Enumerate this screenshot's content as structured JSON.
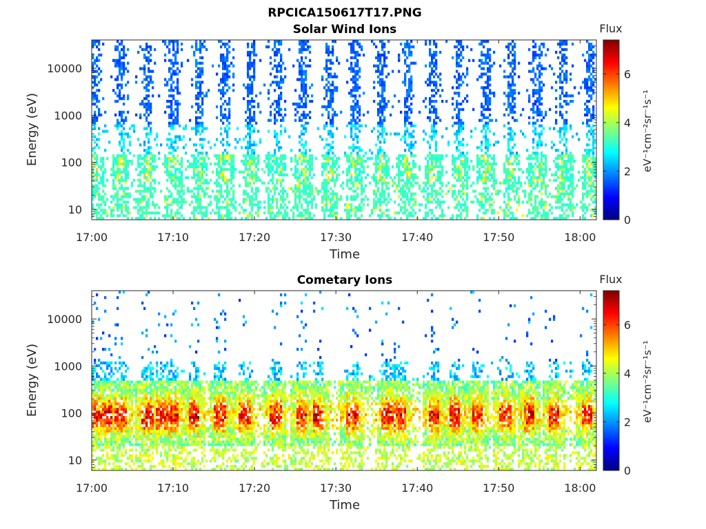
{
  "figure": {
    "title": "RPCICA150617T17.PNG"
  },
  "colormap": {
    "name": "jet",
    "stops": [
      "#00008f",
      "#0000ff",
      "#00ffff",
      "#ffff00",
      "#ff0000",
      "#800000"
    ]
  },
  "chart_data": [
    {
      "type": "heatmap",
      "title": "Solar Wind Ions",
      "xlabel": "Time",
      "ylabel": "Energy (eV)",
      "x_ticks": [
        "17:00",
        "17:10",
        "17:20",
        "17:30",
        "17:40",
        "17:50",
        "18:00"
      ],
      "x_tick_minutes": [
        0,
        10,
        20,
        30,
        40,
        50,
        60
      ],
      "xlim_minutes": [
        0,
        62
      ],
      "y_scale": "log",
      "y_ticks": [
        "10",
        "100",
        "1000",
        "10000"
      ],
      "y_tick_values": [
        10,
        100,
        1000,
        10000
      ],
      "ylim": [
        6,
        40000
      ],
      "colorbar": {
        "label": "Flux",
        "units": "eV⁻¹cm⁻²sr⁻¹s⁻¹",
        "ticks": [
          "0",
          "2",
          "4",
          "6"
        ],
        "tick_values": [
          0,
          2,
          4,
          6
        ],
        "range": [
          0,
          7.4
        ]
      },
      "sweep_centers_minutes": [
        0.4,
        3.6,
        6.8,
        10.0,
        13.2,
        16.4,
        19.6,
        22.8,
        26.0,
        29.2,
        32.4,
        35.6,
        38.8,
        42.0,
        45.2,
        48.4,
        51.6,
        54.8,
        58.0,
        61.2
      ],
      "pattern": {
        "high_energy_band_eV": [
          1000,
          30000
        ],
        "high_energy_flux": 1.3,
        "mid_energy_band_eV": [
          40,
          300
        ],
        "mid_energy_flux": 2.9,
        "low_energy_band_eV": [
          6,
          40
        ],
        "low_energy_flux": 3.0,
        "peak_energy_eV": 90,
        "peak_flux": 5.0
      }
    },
    {
      "type": "heatmap",
      "title": "Cometary Ions",
      "xlabel": "Time",
      "ylabel": "Energy (eV)",
      "x_ticks": [
        "17:00",
        "17:10",
        "17:20",
        "17:30",
        "17:40",
        "17:50",
        "18:00"
      ],
      "x_tick_minutes": [
        0,
        10,
        20,
        30,
        40,
        50,
        60
      ],
      "xlim_minutes": [
        0,
        62
      ],
      "y_scale": "log",
      "y_ticks": [
        "10",
        "100",
        "1000",
        "10000"
      ],
      "y_tick_values": [
        10,
        100,
        1000,
        10000
      ],
      "ylim": [
        6,
        40000
      ],
      "colorbar": {
        "label": "Flux",
        "units": "eV⁻¹cm⁻²sr⁻¹s⁻¹",
        "ticks": [
          "0",
          "2",
          "4",
          "6"
        ],
        "tick_values": [
          0,
          2,
          4,
          6
        ],
        "range": [
          0,
          7.4
        ]
      },
      "sweep_centers_minutes": [
        0.4,
        1.8,
        3.6,
        6.8,
        8.6,
        10.0,
        12.6,
        15.8,
        18.8,
        22.6,
        25.8,
        27.8,
        32.0,
        36.4,
        37.8,
        42.0,
        44.6,
        47.4,
        50.8,
        53.8,
        56.8,
        60.8
      ],
      "pattern": {
        "sparse_high_energy_band_eV": [
          1000,
          30000
        ],
        "sparse_high_energy_flux": 1.2,
        "dense_band_eV": [
          20,
          800
        ],
        "dense_band_flux": 4.3,
        "peak_energy_eV": 90,
        "peak_flux": 6.7,
        "low_energy_band_eV": [
          6,
          20
        ],
        "low_energy_flux": 3.6
      }
    }
  ]
}
